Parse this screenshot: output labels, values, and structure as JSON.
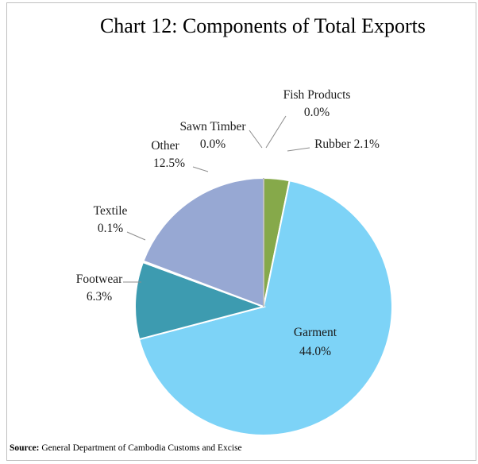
{
  "title": "Chart 12: Components of Total Exports",
  "source_label": "Source:",
  "source_text": "General Department of Cambodia Customs and Excise",
  "chart_data": {
    "type": "pie",
    "title": "Chart 12: Components of Total Exports",
    "slices": [
      {
        "name": "Fish Products",
        "pct_label": "0.0%",
        "value": 0.0,
        "color": "#808080"
      },
      {
        "name": "Rubber",
        "pct_label": "2.1%",
        "value": 2.1,
        "color": "#86a94a"
      },
      {
        "name": "Garment",
        "pct_label": "44.0%",
        "value": 44.0,
        "color": "#7dd3f7"
      },
      {
        "name": "Footwear",
        "pct_label": "6.3%",
        "value": 6.3,
        "color": "#3d9bb0"
      },
      {
        "name": "Textile",
        "pct_label": "0.1%",
        "value": 0.1,
        "color": "#e0873a"
      },
      {
        "name": "Other",
        "pct_label": "12.5%",
        "value": 12.5,
        "color": "#97a8d3"
      },
      {
        "name": "Sawn Timber",
        "pct_label": "0.0%",
        "value": 0.0,
        "color": "#808080"
      }
    ]
  }
}
